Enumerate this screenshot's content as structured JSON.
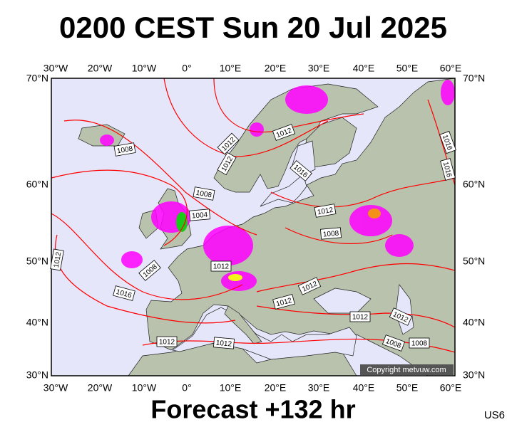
{
  "header": {
    "title": "0200 CEST Sun 20 Jul 2025"
  },
  "map": {
    "lon_labels": [
      "30°W",
      "20°W",
      "10°W",
      "0°",
      "10°E",
      "20°E",
      "30°E",
      "40°E",
      "50°E",
      "60°E"
    ],
    "lat_labels": [
      "70°N",
      "60°N",
      "50°N",
      "40°N",
      "30°N"
    ],
    "isobar_labels": [
      "1008",
      "1012",
      "1012",
      "1012",
      "1016",
      "1008",
      "1004",
      "1012",
      "1008",
      "1012",
      "1012",
      "1008",
      "1016",
      "1012",
      "1012",
      "1012",
      "1012",
      "1012",
      "1012",
      "1008",
      "1008",
      "1016",
      "1016"
    ],
    "copyright": "Copyright metvuw.com"
  },
  "footer": {
    "forecast": "Forecast +132 hr",
    "code": "US6"
  }
}
